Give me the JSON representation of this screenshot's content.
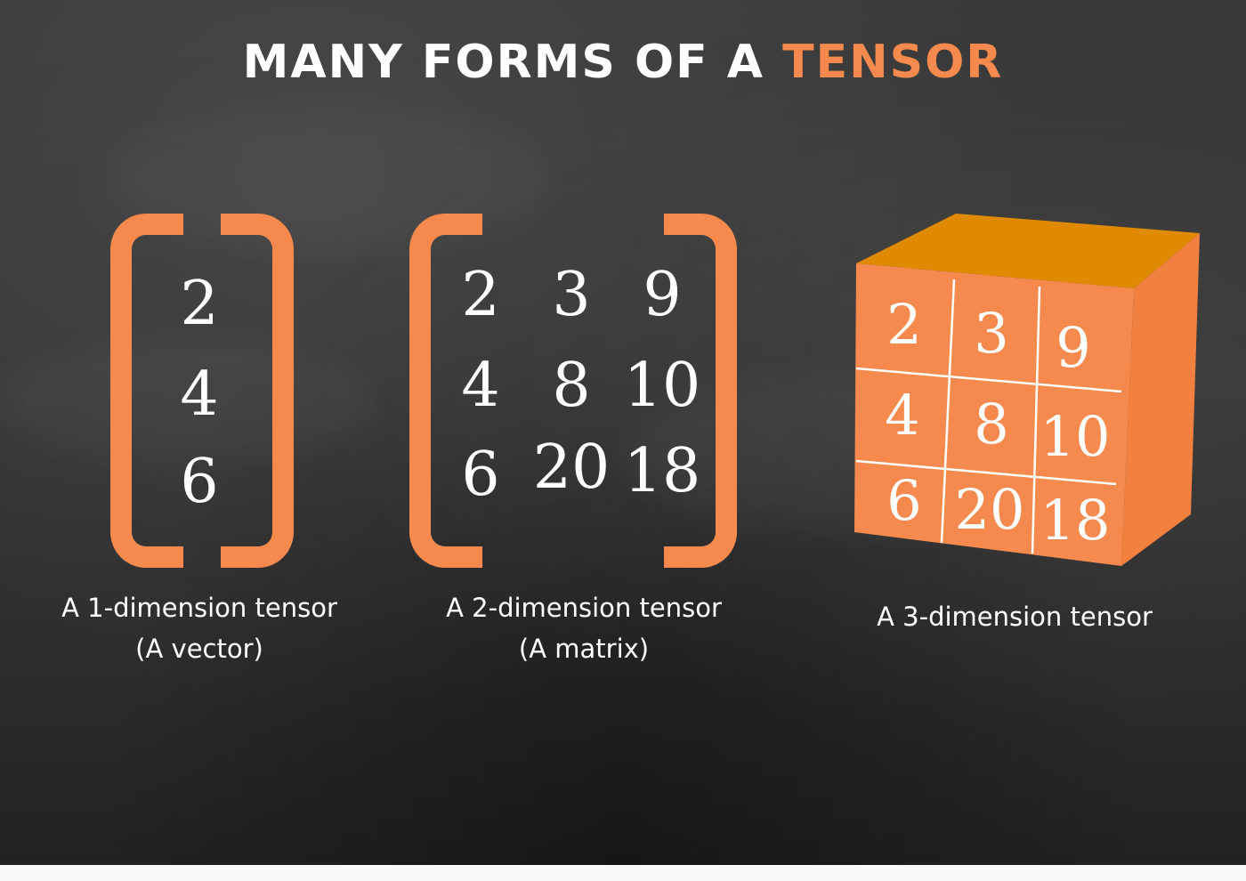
{
  "title": {
    "prefix": "MANY FORMS OF A ",
    "highlight": "TENSOR"
  },
  "colors": {
    "accent": "#f68a4e",
    "cube_top": "#e08a00",
    "cube_side": "#f2803f",
    "board": "#363636",
    "text": "#ffffff"
  },
  "vector": {
    "values": [
      "2",
      "4",
      "6"
    ],
    "caption_line1": "A 1-dimension tensor",
    "caption_line2": "(A vector)"
  },
  "matrix": {
    "rows": [
      [
        "2",
        "3",
        "9"
      ],
      [
        "4",
        "8",
        "10"
      ],
      [
        "6",
        "20",
        "18"
      ]
    ],
    "caption_line1": "A 2-dimension tensor",
    "caption_line2": "(A matrix)"
  },
  "tensor3d": {
    "rows": [
      [
        "2",
        "3",
        "9"
      ],
      [
        "4",
        "8",
        "10"
      ],
      [
        "6",
        "20",
        "18"
      ]
    ],
    "caption": "A 3-dimension tensor"
  }
}
